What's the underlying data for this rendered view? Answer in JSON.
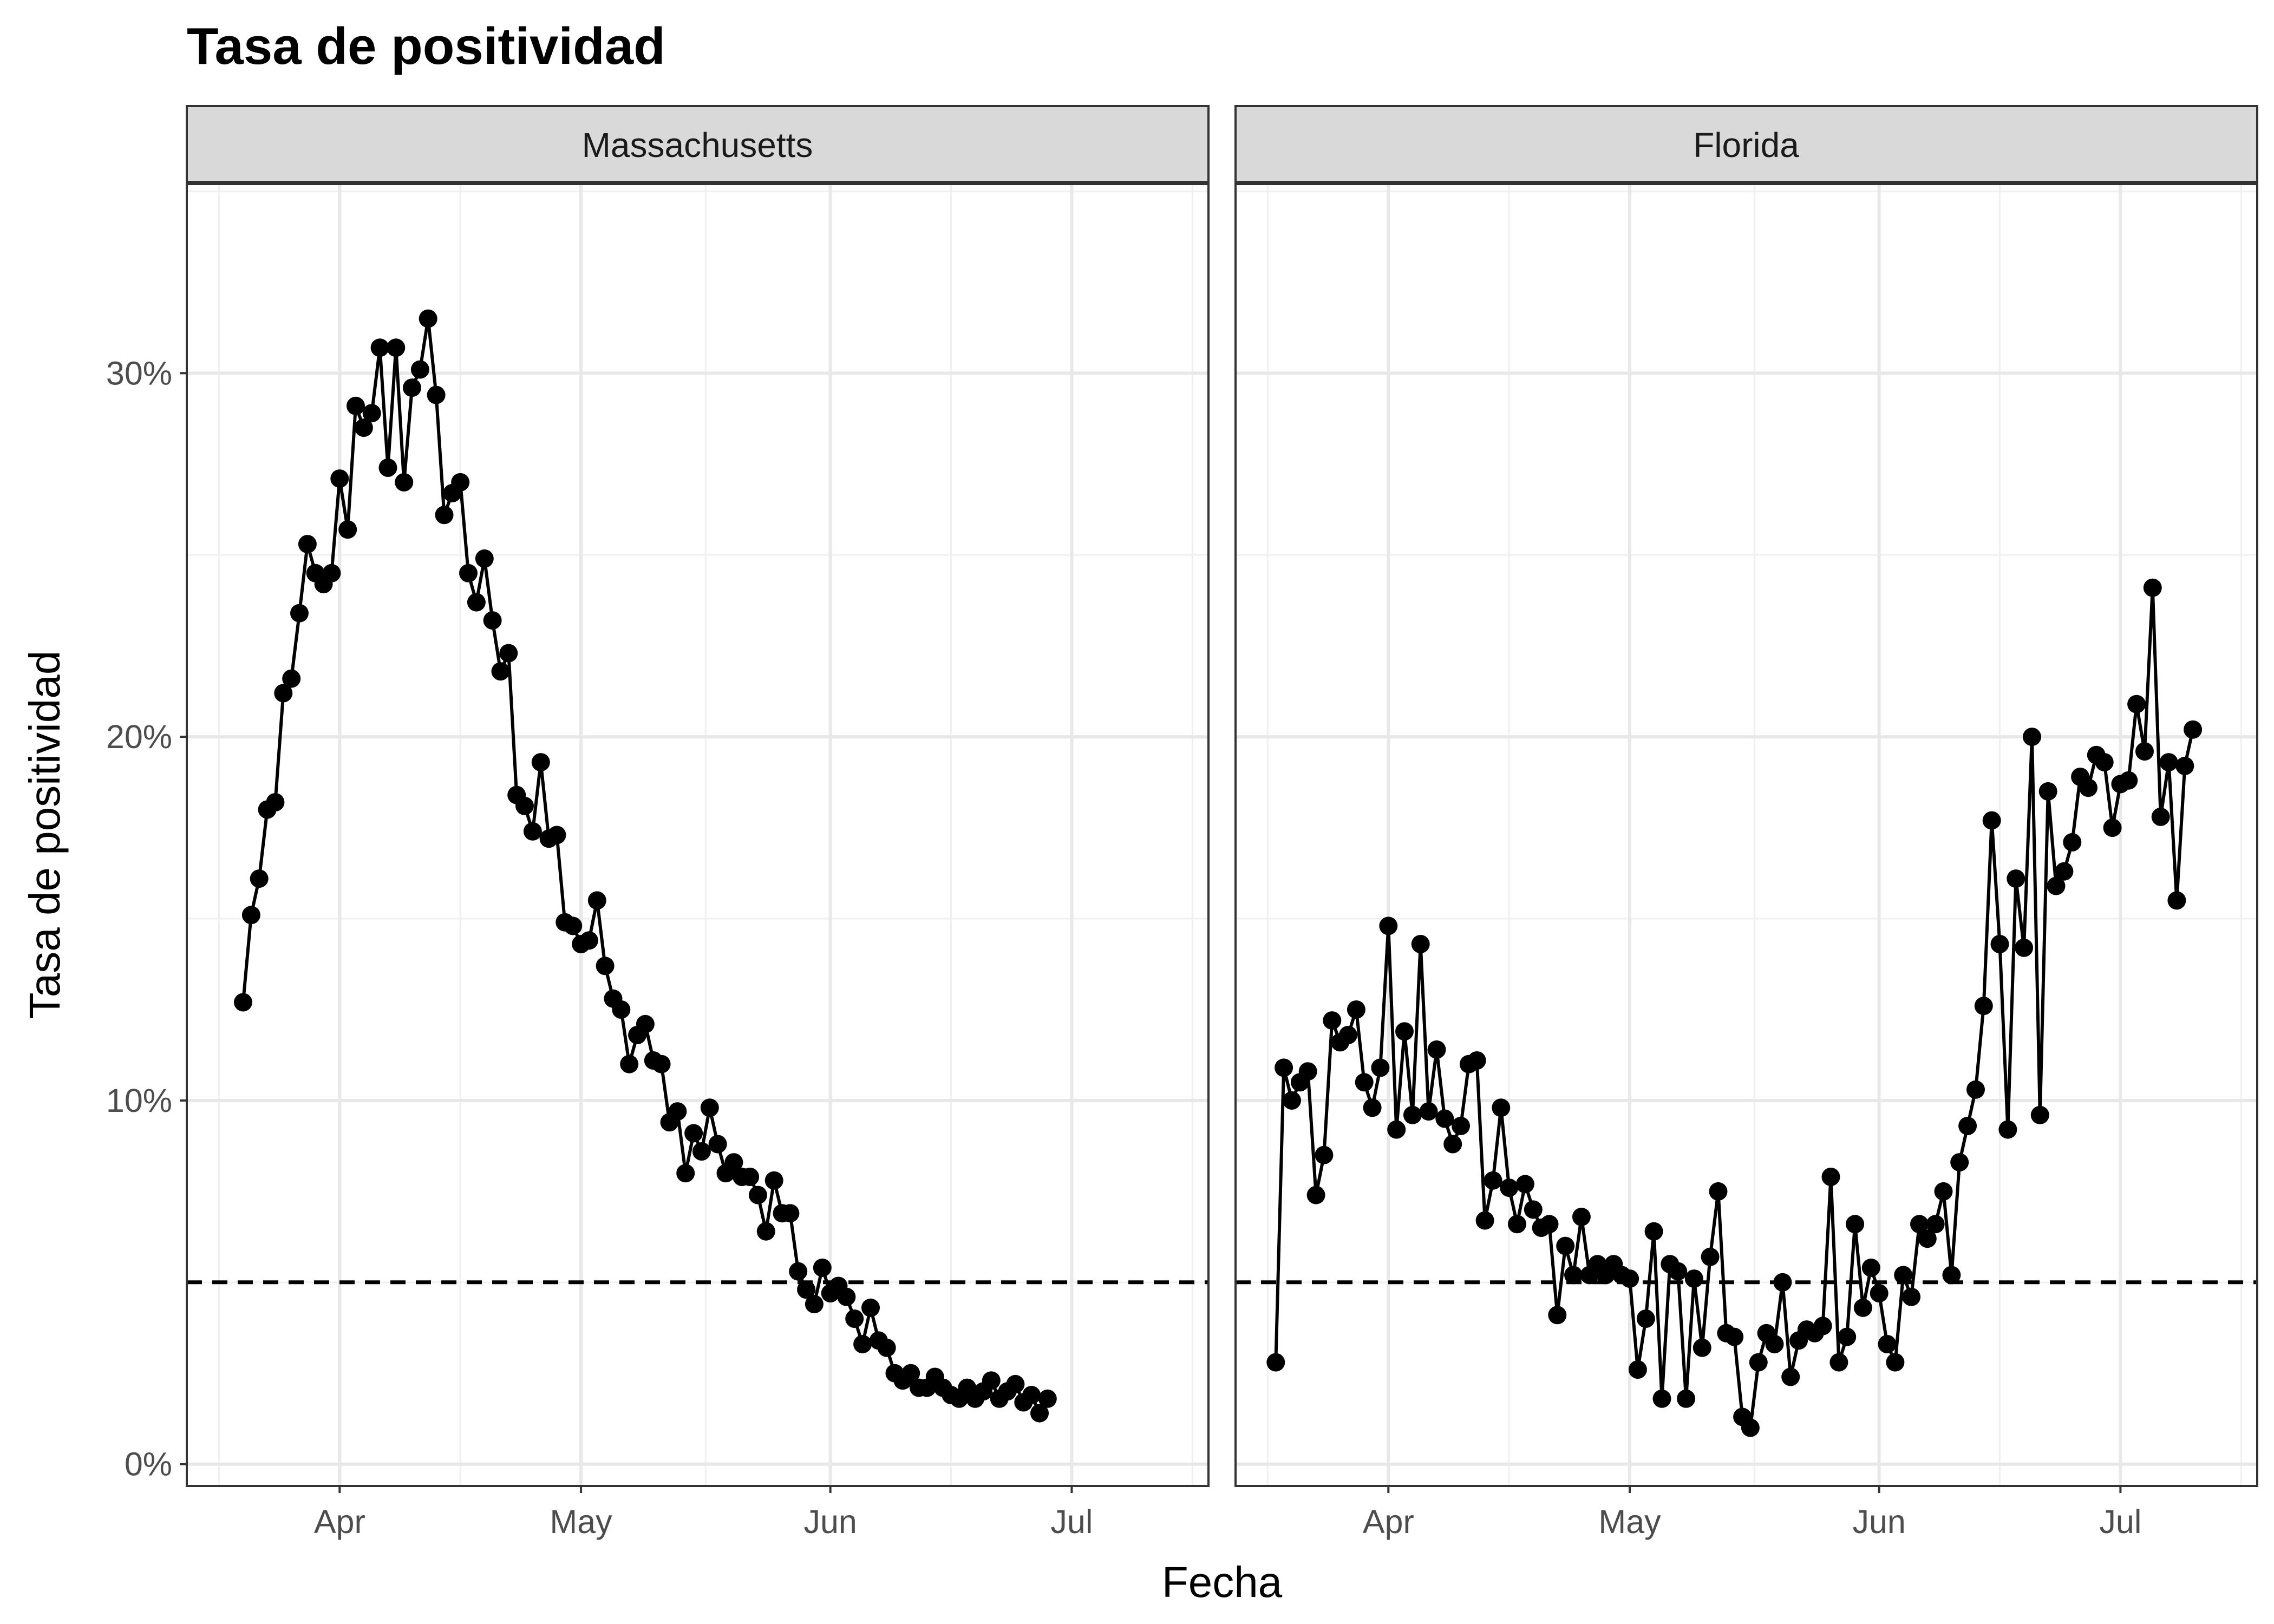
{
  "chart_data": {
    "type": "line",
    "title": "Tasa de positividad",
    "xlabel": "Fecha",
    "ylabel": "Tasa de positividad",
    "x_axis": {
      "ticks": [
        {
          "date": "2020-04-01",
          "label": "Apr"
        },
        {
          "date": "2020-05-01",
          "label": "May"
        },
        {
          "date": "2020-06-01",
          "label": "Jun"
        },
        {
          "date": "2020-07-01",
          "label": "Jul"
        }
      ],
      "range": [
        "2020-03-13",
        "2020-07-18"
      ]
    },
    "y_axis": {
      "ticks": [
        {
          "value": 0,
          "label": "0%"
        },
        {
          "value": 10,
          "label": "10%"
        },
        {
          "value": 20,
          "label": "20%"
        },
        {
          "value": 30,
          "label": "30%"
        }
      ],
      "range": [
        -0.6,
        35.2
      ]
    },
    "reference_line": {
      "value": 5,
      "style": "dashed"
    },
    "grid": true,
    "marker_color": "#000000",
    "panels": [
      {
        "name": "Massachusetts",
        "start_date": "2020-03-20",
        "values": [
          12.7,
          15.1,
          16.1,
          18.0,
          18.2,
          21.2,
          21.6,
          23.4,
          25.3,
          24.5,
          24.2,
          24.5,
          27.1,
          25.7,
          29.1,
          28.5,
          28.9,
          30.7,
          27.4,
          30.7,
          27.0,
          29.6,
          30.1,
          31.5,
          29.4,
          26.1,
          26.7,
          27.0,
          24.5,
          23.7,
          24.9,
          23.2,
          21.8,
          22.3,
          18.4,
          18.1,
          17.4,
          19.3,
          17.2,
          17.3,
          14.9,
          14.8,
          14.3,
          14.4,
          15.5,
          13.7,
          12.8,
          12.5,
          11.0,
          11.8,
          12.1,
          11.1,
          11.0,
          9.4,
          9.7,
          8.0,
          9.1,
          8.6,
          9.8,
          8.8,
          8.0,
          8.3,
          7.9,
          7.9,
          7.4,
          6.4,
          7.8,
          6.9,
          6.9,
          5.3,
          4.8,
          4.4,
          5.4,
          4.7,
          4.9,
          4.6,
          4.0,
          3.3,
          4.3,
          3.4,
          3.2,
          2.5,
          2.3,
          2.5,
          2.1,
          2.1,
          2.4,
          2.1,
          1.9,
          1.8,
          2.1,
          1.8,
          2.0,
          2.3,
          1.8,
          2.0,
          2.2,
          1.7,
          1.9,
          1.4,
          1.8
        ]
      },
      {
        "name": "Florida",
        "start_date": "2020-03-18",
        "values": [
          2.8,
          10.9,
          10.0,
          10.5,
          10.8,
          7.4,
          8.5,
          12.2,
          11.6,
          11.8,
          12.5,
          10.5,
          9.8,
          10.9,
          14.8,
          9.2,
          11.9,
          9.6,
          14.3,
          9.7,
          11.4,
          9.5,
          8.8,
          9.3,
          11.0,
          11.1,
          6.7,
          7.8,
          9.8,
          7.6,
          6.6,
          7.7,
          7.0,
          6.5,
          6.6,
          4.1,
          6.0,
          5.2,
          6.8,
          5.2,
          5.5,
          5.2,
          5.5,
          5.2,
          5.1,
          2.6,
          4.0,
          6.4,
          1.8,
          5.5,
          5.3,
          1.8,
          5.1,
          3.2,
          5.7,
          7.5,
          3.6,
          3.5,
          1.3,
          1.0,
          2.8,
          3.6,
          3.3,
          5.0,
          2.4,
          3.4,
          3.7,
          3.6,
          3.8,
          7.9,
          2.8,
          3.5,
          6.6,
          4.3,
          5.4,
          4.7,
          3.3,
          2.8,
          5.2,
          4.6,
          6.6,
          6.2,
          6.6,
          7.5,
          5.2,
          8.3,
          9.3,
          10.3,
          12.6,
          17.7,
          14.3,
          9.2,
          16.1,
          14.2,
          20.0,
          9.6,
          18.5,
          15.9,
          16.3,
          17.1,
          18.9,
          18.6,
          19.5,
          19.3,
          17.5,
          18.7,
          18.8,
          20.9,
          19.6,
          24.1,
          17.8,
          19.3,
          15.5,
          19.2,
          20.2
        ]
      }
    ]
  }
}
